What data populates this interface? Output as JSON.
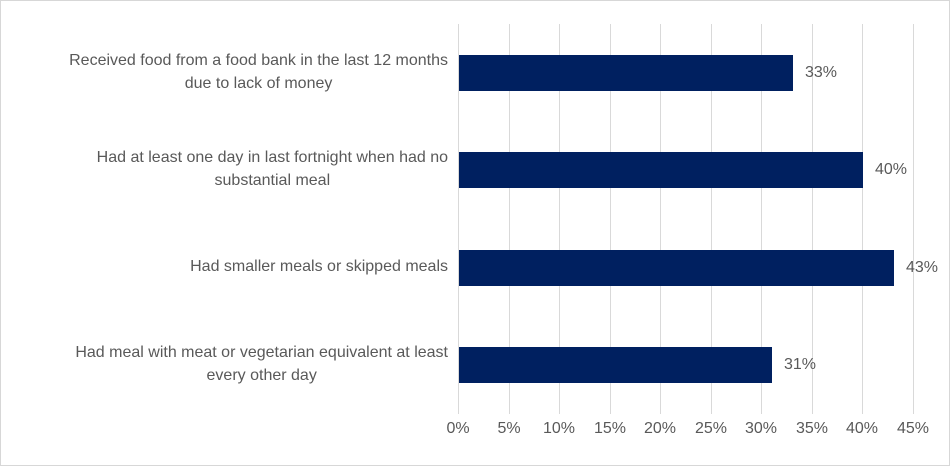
{
  "chart": {
    "background_color": "#ffffff",
    "border_color": "#d7d7d7",
    "bar_color": "#002060",
    "text_color": "#595959",
    "gridline_color": "#d9d9d9"
  },
  "chart_data": {
    "type": "bar",
    "orientation": "horizontal",
    "title": "",
    "xlabel": "",
    "ylabel": "",
    "categories": [
      "Received food from a food bank in the last 12 months due to lack of money",
      "Had at least one day in last fortnight when had no substantial meal",
      "Had smaller meals or skipped meals",
      "Had meal with meat or vegetarian equivalent at least every other day"
    ],
    "category_lines": [
      [
        "Received food from a food bank in the last 12 months",
        "due to lack of money"
      ],
      [
        "Had at least one day in last fortnight when had no",
        "substantial meal"
      ],
      [
        "Had smaller meals or skipped meals"
      ],
      [
        "Had meal with meat or vegetarian equivalent at least",
        "every other day"
      ]
    ],
    "values": [
      33,
      40,
      43,
      31
    ],
    "value_labels": [
      "33%",
      "40%",
      "43%",
      "31%"
    ],
    "x_ticks": [
      "0%",
      "5%",
      "10%",
      "15%",
      "20%",
      "25%",
      "30%",
      "35%",
      "40%",
      "45%"
    ],
    "x_tick_values": [
      0,
      5,
      10,
      15,
      20,
      25,
      30,
      35,
      40,
      45
    ],
    "xlim": [
      0,
      45
    ],
    "grid": true,
    "legend": false
  }
}
